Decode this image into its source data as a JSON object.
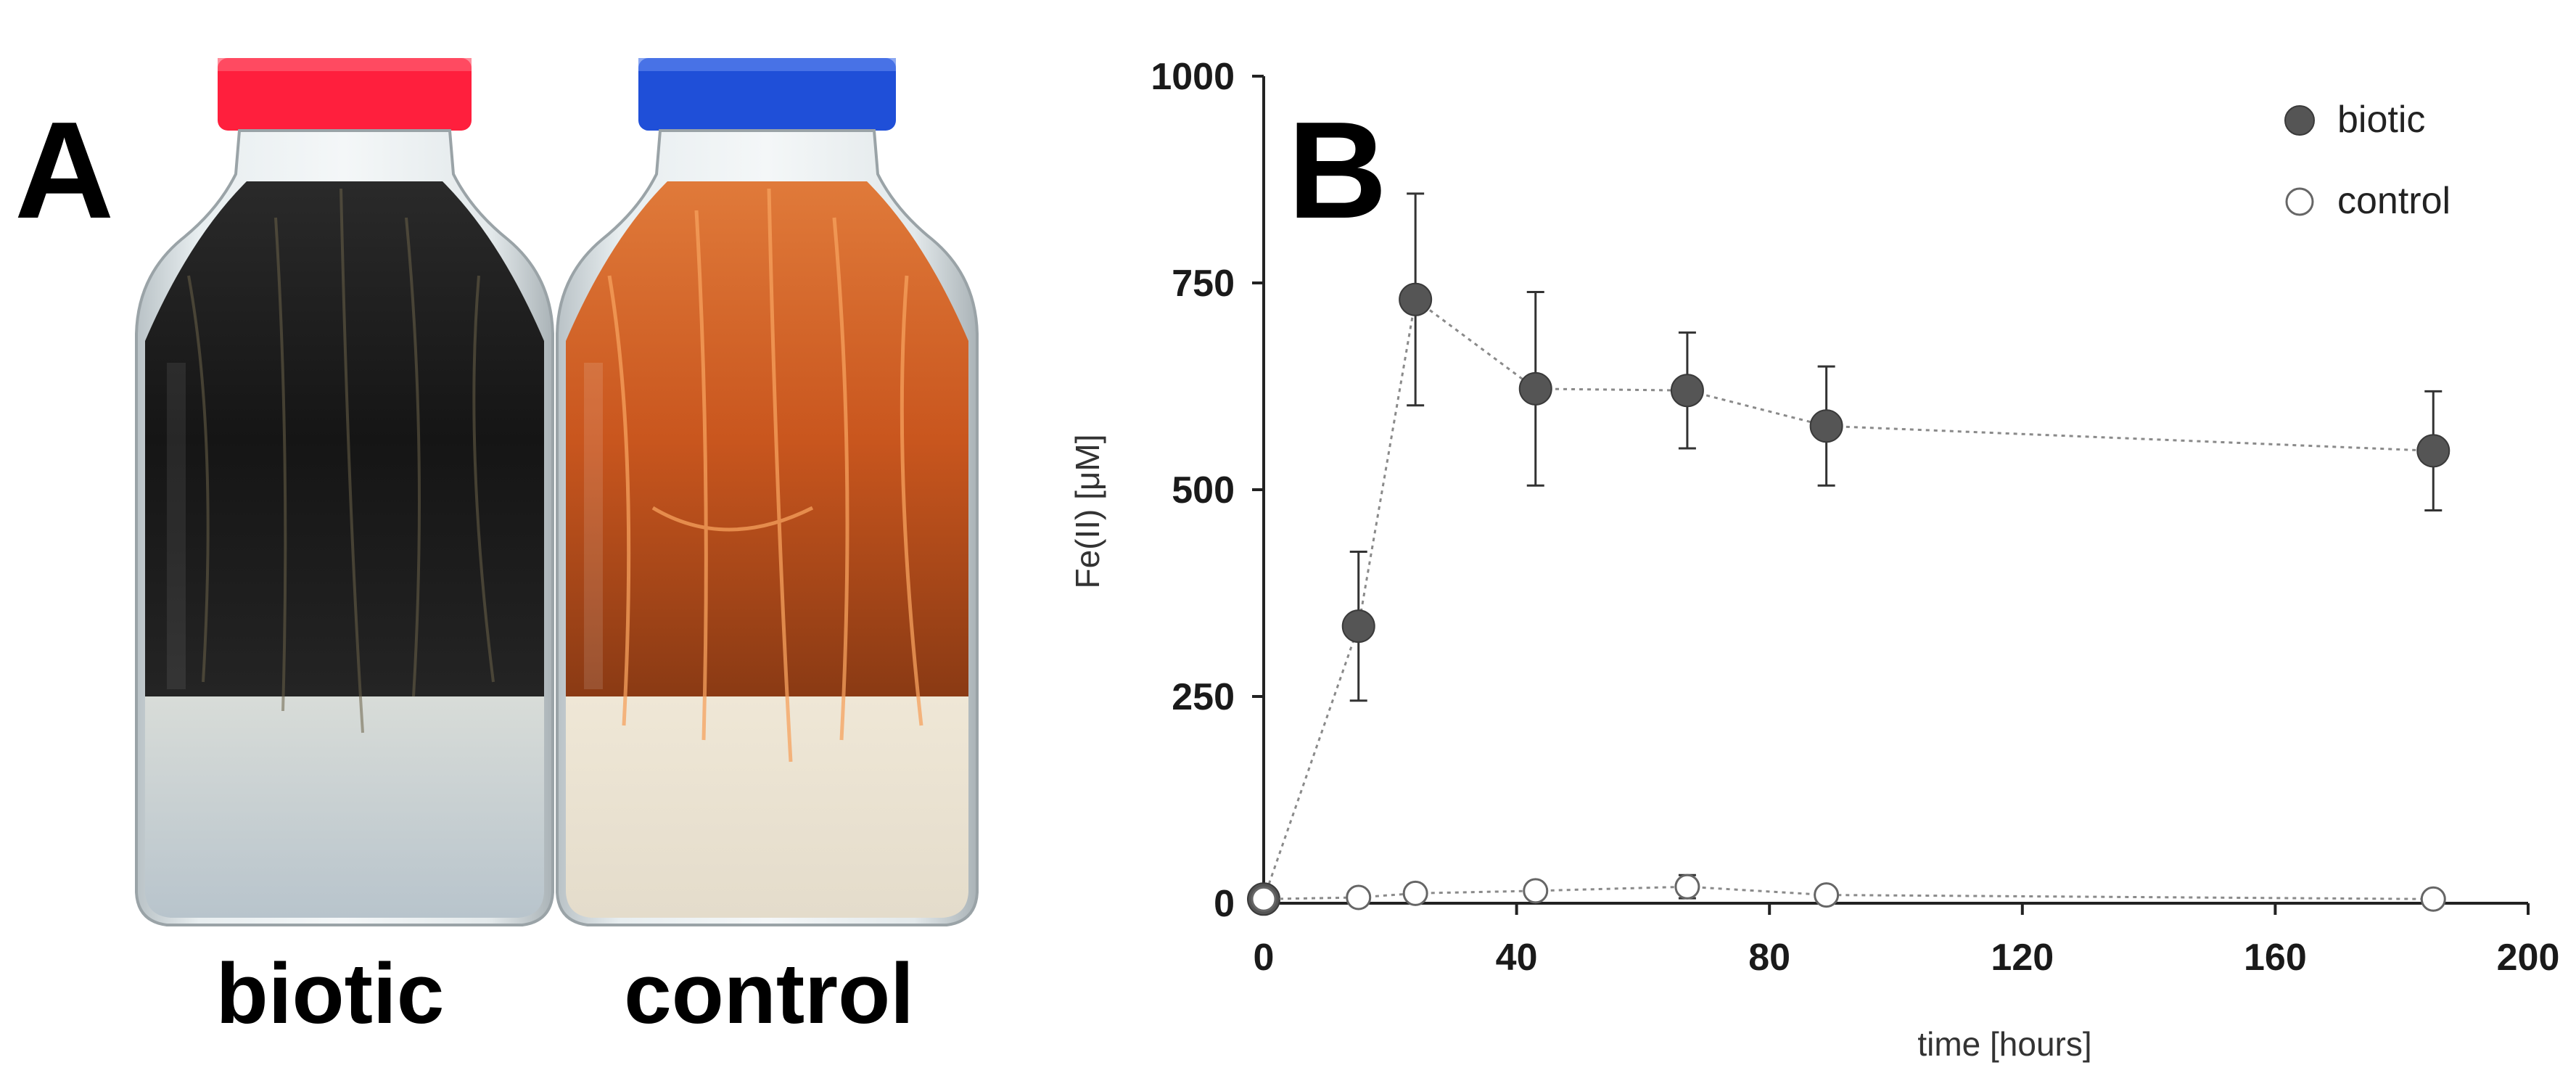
{
  "panel_a": {
    "letter": "A",
    "bottles": [
      {
        "caption": "biotic",
        "cap_color": "#ff1f3d",
        "liquid_color": "#1c1c1c"
      },
      {
        "caption": "control",
        "cap_color": "#1f4fd8",
        "liquid_color": "#c8551f"
      }
    ]
  },
  "panel_b": {
    "letter": "B"
  },
  "chart_data": {
    "type": "scatter",
    "title": "",
    "xlabel": "time [hours]",
    "ylabel": "Fe(II) [μM]",
    "xlim": [
      0,
      200
    ],
    "ylim": [
      0,
      1000
    ],
    "xticks": [
      "0",
      "40",
      "80",
      "120",
      "160",
      "200"
    ],
    "yticks": [
      "0",
      "250",
      "500",
      "750",
      "1000"
    ],
    "grid": false,
    "legend_position": "top-right",
    "series": [
      {
        "name": "biotic",
        "marker": "filled-circle",
        "color": "#555555",
        "line": "dotted",
        "x": [
          0,
          15,
          24,
          43,
          67,
          89,
          185
        ],
        "y": [
          5,
          335,
          730,
          622,
          620,
          577,
          547
        ],
        "yerr": [
          5,
          90,
          128,
          117,
          70,
          72,
          72
        ]
      },
      {
        "name": "control",
        "marker": "open-circle",
        "color": "#666666",
        "line": "dotted",
        "x": [
          0,
          15,
          24,
          43,
          67,
          89,
          185
        ],
        "y": [
          5,
          7,
          12,
          15,
          20,
          10,
          5
        ],
        "yerr": [
          3,
          4,
          10,
          6,
          14,
          5,
          3
        ]
      }
    ]
  }
}
